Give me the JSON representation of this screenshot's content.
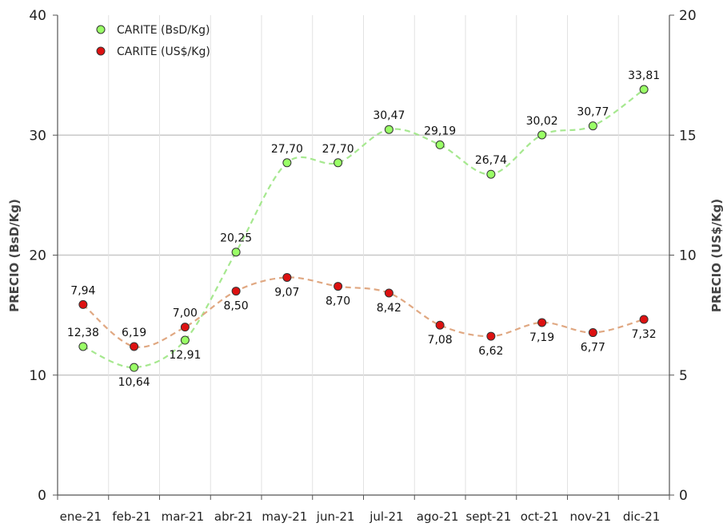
{
  "chart_data": {
    "type": "line",
    "categories": [
      "ene-21",
      "feb-21",
      "mar-21",
      "abr-21",
      "may-21",
      "jun-21",
      "jul-21",
      "ago-21",
      "sept-21",
      "oct-21",
      "nov-21",
      "dic-21"
    ],
    "series": [
      {
        "name": "CARITE (BsD/Kg)",
        "axis": "left",
        "color": "#99ff66",
        "line_color": "#a6e88f",
        "values": [
          12.38,
          10.64,
          12.91,
          20.25,
          27.7,
          27.7,
          30.47,
          29.19,
          26.74,
          30.02,
          30.77,
          33.81
        ],
        "labels": [
          "12,38",
          "10,64",
          "12,91",
          "20,25",
          "27,70",
          "27,70",
          "30,47",
          "29,19",
          "26,74",
          "30,02",
          "30,77",
          "33,81"
        ]
      },
      {
        "name": "CARITE (US$/Kg)",
        "axis": "right",
        "color": "#dd1111",
        "line_color": "#e0a882",
        "values": [
          7.94,
          6.19,
          7.0,
          8.5,
          9.07,
          8.7,
          8.42,
          7.08,
          6.62,
          7.19,
          6.77,
          7.32
        ],
        "labels": [
          "7,94",
          "6,19",
          "7,00",
          "8,50",
          "9,07",
          "8,70",
          "8,42",
          "7,08",
          "6,62",
          "7,19",
          "6,77",
          "7,32"
        ]
      }
    ],
    "ylabel_left": "PRECIO (BsD/Kg)",
    "ylabel_right": "PRECIO (US$/Kg)",
    "ylim_left": [
      0,
      40
    ],
    "ylim_right": [
      0,
      20
    ],
    "yticks_left": [
      "0",
      "10",
      "20",
      "30",
      "40"
    ],
    "yticks_right": [
      "0",
      "5",
      "10",
      "15",
      "20"
    ],
    "grid": "horizontal",
    "legend_position": "top-left"
  }
}
